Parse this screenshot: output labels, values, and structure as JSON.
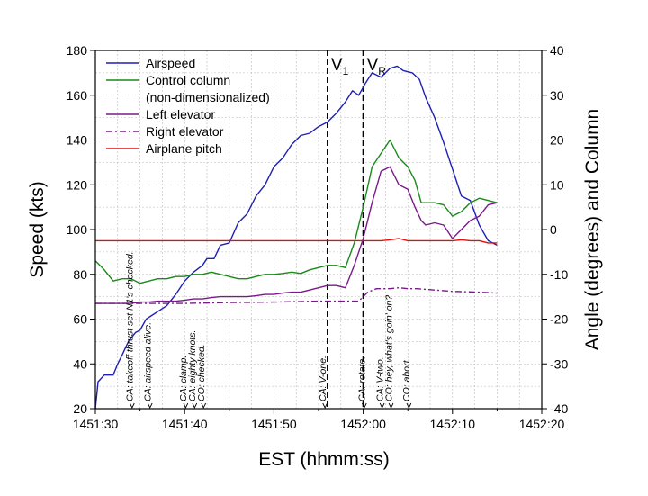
{
  "chart_data": {
    "type": "line",
    "xlabel": "EST (hhmm:ss)",
    "ylabel_left": "Speed (kts)",
    "ylabel_right": "Angle (degrees) and Column",
    "x_unit": "seconds after 1451:30",
    "xlim": [
      0,
      50
    ],
    "ylim_left": [
      20,
      180
    ],
    "ylim_right": [
      -40,
      40
    ],
    "x_ticks": [
      {
        "x": 0,
        "label": "1451:30"
      },
      {
        "x": 10,
        "label": "1451:40"
      },
      {
        "x": 20,
        "label": "1451:50"
      },
      {
        "x": 30,
        "label": "1452:00"
      },
      {
        "x": 40,
        "label": "1452:10"
      },
      {
        "x": 50,
        "label": "1452:20"
      }
    ],
    "y_left_ticks": [
      20,
      40,
      60,
      80,
      100,
      120,
      140,
      160,
      180
    ],
    "y_right_ticks": [
      -40,
      -30,
      -20,
      -10,
      0,
      10,
      20,
      30,
      40
    ],
    "grid": true,
    "legend_position": "top-left",
    "series": [
      {
        "name": "Airspeed",
        "axis": "left",
        "color": "#1f1fb4",
        "dash": "solid",
        "points": [
          [
            0,
            20
          ],
          [
            0.3,
            32
          ],
          [
            1,
            35
          ],
          [
            2,
            35
          ],
          [
            2.5,
            40
          ],
          [
            3,
            44
          ],
          [
            3.7,
            50
          ],
          [
            4.5,
            54
          ],
          [
            5,
            55
          ],
          [
            5.7,
            60
          ],
          [
            8,
            66
          ],
          [
            9,
            71
          ],
          [
            10,
            77
          ],
          [
            11,
            81
          ],
          [
            12,
            84
          ],
          [
            12.5,
            87
          ],
          [
            13.3,
            87
          ],
          [
            14,
            93
          ],
          [
            15,
            94
          ],
          [
            16,
            103
          ],
          [
            17,
            107
          ],
          [
            18,
            115
          ],
          [
            19,
            120
          ],
          [
            20,
            128
          ],
          [
            21,
            132
          ],
          [
            22,
            138
          ],
          [
            23,
            142
          ],
          [
            24,
            143
          ],
          [
            25,
            146
          ],
          [
            26,
            148
          ],
          [
            27,
            152
          ],
          [
            28,
            157
          ],
          [
            28.8,
            162
          ],
          [
            29.5,
            160
          ],
          [
            30.2,
            165
          ],
          [
            31,
            170
          ],
          [
            32,
            168
          ],
          [
            33,
            172
          ],
          [
            33.8,
            173
          ],
          [
            34.5,
            171
          ],
          [
            35.5,
            170
          ],
          [
            36.3,
            167
          ],
          [
            37,
            159
          ],
          [
            38,
            150
          ],
          [
            39,
            139
          ],
          [
            40,
            127
          ],
          [
            41,
            115
          ],
          [
            42,
            113
          ],
          [
            43,
            102
          ],
          [
            44,
            95
          ],
          [
            45,
            93
          ]
        ]
      },
      {
        "name": "Control column (non-dimensionalized)",
        "axis": "right",
        "color": "#1a8a1a",
        "dash": "solid",
        "points": [
          [
            0,
            -7
          ],
          [
            0.5,
            -8
          ],
          [
            1,
            -9
          ],
          [
            2,
            -11.5
          ],
          [
            3,
            -11
          ],
          [
            4,
            -11
          ],
          [
            5,
            -12
          ],
          [
            6,
            -11.5
          ],
          [
            7,
            -11
          ],
          [
            8,
            -11
          ],
          [
            9,
            -10.5
          ],
          [
            10,
            -10.5
          ],
          [
            11,
            -10
          ],
          [
            12,
            -10
          ],
          [
            13,
            -9.5
          ],
          [
            14,
            -10
          ],
          [
            15,
            -10.5
          ],
          [
            16,
            -11
          ],
          [
            17,
            -11
          ],
          [
            18,
            -10.5
          ],
          [
            19,
            -10
          ],
          [
            20,
            -10
          ],
          [
            21,
            -9.8
          ],
          [
            22,
            -9.5
          ],
          [
            23,
            -9.8
          ],
          [
            24,
            -9
          ],
          [
            25,
            -8.5
          ],
          [
            26,
            -8
          ],
          [
            27,
            -8
          ],
          [
            28,
            -8.5
          ],
          [
            29,
            -3
          ],
          [
            30,
            5
          ],
          [
            31,
            14
          ],
          [
            32,
            17
          ],
          [
            33,
            20
          ],
          [
            34,
            16
          ],
          [
            35,
            14
          ],
          [
            35.8,
            11
          ],
          [
            36.5,
            6
          ],
          [
            37,
            6
          ],
          [
            38,
            6
          ],
          [
            39,
            5.5
          ],
          [
            40,
            3
          ],
          [
            41,
            4
          ],
          [
            42,
            6
          ],
          [
            43,
            7
          ],
          [
            44,
            6.5
          ],
          [
            45,
            6
          ]
        ]
      },
      {
        "name": "Left elevator",
        "axis": "right",
        "color": "#7a1a8a",
        "dash": "solid",
        "points": [
          [
            0,
            -16.5
          ],
          [
            1,
            -16.5
          ],
          [
            2,
            -16.5
          ],
          [
            3,
            -16.5
          ],
          [
            4,
            -16.5
          ],
          [
            5,
            -16.2
          ],
          [
            6,
            -16.2
          ],
          [
            7,
            -16
          ],
          [
            8,
            -16
          ],
          [
            9,
            -16
          ],
          [
            10,
            -15.8
          ],
          [
            11,
            -15.5
          ],
          [
            12,
            -15.5
          ],
          [
            13,
            -15.2
          ],
          [
            14,
            -15
          ],
          [
            15,
            -15
          ],
          [
            16,
            -15
          ],
          [
            17,
            -15
          ],
          [
            18,
            -14.8
          ],
          [
            19,
            -14.5
          ],
          [
            20,
            -14.5
          ],
          [
            21,
            -14.2
          ],
          [
            22,
            -14
          ],
          [
            23,
            -14
          ],
          [
            24,
            -13.5
          ],
          [
            25,
            -13
          ],
          [
            26,
            -12.5
          ],
          [
            27,
            -12.5
          ],
          [
            28,
            -13
          ],
          [
            29,
            -8
          ],
          [
            30,
            -2
          ],
          [
            31,
            6
          ],
          [
            32,
            13
          ],
          [
            33,
            14
          ],
          [
            34,
            10
          ],
          [
            35,
            9
          ],
          [
            35.8,
            5
          ],
          [
            36.5,
            2
          ],
          [
            37,
            1
          ],
          [
            38,
            1.5
          ],
          [
            39,
            1
          ],
          [
            40,
            -2
          ],
          [
            41,
            0
          ],
          [
            42,
            2
          ],
          [
            43,
            3
          ],
          [
            44,
            5.5
          ],
          [
            45,
            6
          ]
        ]
      },
      {
        "name": "Right elevator",
        "axis": "right",
        "color": "#7a1a8a",
        "dash": "dashdot",
        "points": [
          [
            0,
            -16.5
          ],
          [
            5,
            -16.5
          ],
          [
            10,
            -16.5
          ],
          [
            15,
            -16.3
          ],
          [
            20,
            -16.2
          ],
          [
            25,
            -16
          ],
          [
            29.5,
            -16
          ],
          [
            30.5,
            -14
          ],
          [
            31.5,
            -13.2
          ],
          [
            33,
            -13.2
          ],
          [
            34,
            -13
          ],
          [
            35,
            -13.2
          ],
          [
            36,
            -13.2
          ],
          [
            40,
            -13.8
          ],
          [
            43,
            -14
          ],
          [
            45,
            -14.2
          ]
        ]
      },
      {
        "name": "Airplane pitch",
        "axis": "right",
        "color": "#e01010",
        "dash": "solid",
        "points": [
          [
            0,
            -2.5
          ],
          [
            5,
            -2.5
          ],
          [
            10,
            -2.5
          ],
          [
            15,
            -2.5
          ],
          [
            20,
            -2.5
          ],
          [
            25,
            -2.5
          ],
          [
            28,
            -2.5
          ],
          [
            30,
            -2.5
          ],
          [
            32,
            -2.5
          ],
          [
            33,
            -2.3
          ],
          [
            34,
            -2
          ],
          [
            35,
            -2.5
          ],
          [
            36,
            -2.5
          ],
          [
            38,
            -2.5
          ],
          [
            40,
            -2.5
          ],
          [
            41,
            -2.3
          ],
          [
            42,
            -2.5
          ],
          [
            43,
            -2.5
          ],
          [
            44,
            -3
          ],
          [
            45,
            -3
          ]
        ]
      }
    ],
    "vlines": [
      {
        "x": 26,
        "label": "V",
        "subscript": "1"
      },
      {
        "x": 30,
        "label": "V",
        "subscript": "R"
      }
    ],
    "annotations": [
      {
        "x": 4.2,
        "text": "CA: takeoff thrust set N1's checked."
      },
      {
        "x": 6.2,
        "text": "CA: airspeed alive."
      },
      {
        "x": 10.2,
        "text": "CA: clamp."
      },
      {
        "x": 11.2,
        "text": "CA: eighty knots."
      },
      {
        "x": 12.2,
        "text": "CO: checked."
      },
      {
        "x": 25.8,
        "text": "CA: V-one."
      },
      {
        "x": 30.2,
        "text": "CA: rotate."
      },
      {
        "x": 32.2,
        "text": "CA: V-two."
      },
      {
        "x": 33.2,
        "text": "CO: hey, what's goin' on?"
      },
      {
        "x": 35.2,
        "text": "CO: abort."
      }
    ]
  }
}
